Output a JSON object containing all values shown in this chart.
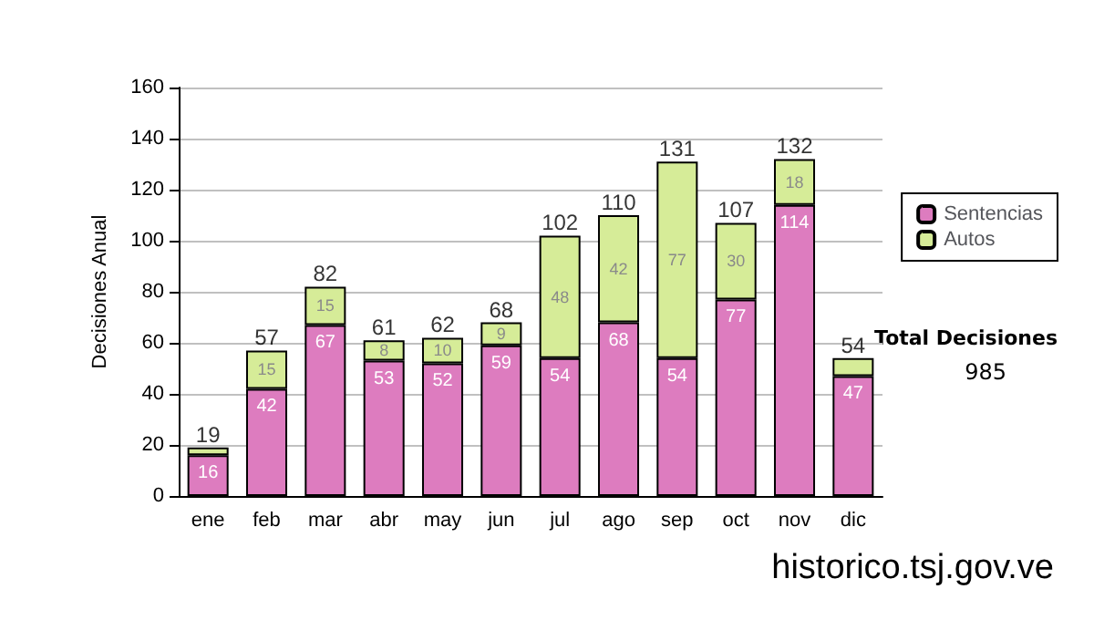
{
  "chart_data": {
    "type": "bar",
    "stacked": true,
    "ylabel": "Decisiones Anual",
    "categories": [
      "ene",
      "feb",
      "mar",
      "abr",
      "may",
      "jun",
      "jul",
      "ago",
      "sep",
      "oct",
      "nov",
      "dic"
    ],
    "series": [
      {
        "name": "Sentencias",
        "color": "#dd7cbf",
        "values": [
          16,
          42,
          67,
          53,
          52,
          59,
          54,
          68,
          54,
          77,
          114,
          47
        ],
        "value_labels": [
          "16",
          "42",
          "67",
          "53",
          "52",
          "59",
          "54",
          "68",
          "54",
          "77",
          "114",
          "47"
        ]
      },
      {
        "name": "Autos",
        "color": "#d6ec98",
        "values": [
          3,
          15,
          15,
          8,
          10,
          9,
          48,
          42,
          77,
          30,
          18,
          7
        ],
        "value_labels": [
          null,
          "15",
          "15",
          "8",
          "10",
          "9",
          "48",
          "42",
          "77",
          "30",
          "18",
          null
        ]
      }
    ],
    "totals": [
      "19",
      "57",
      "82",
      "61",
      "62",
      "68",
      "102",
      "110",
      "131",
      "107",
      "132",
      "54"
    ],
    "ylim": [
      0,
      160
    ],
    "yticks": [
      0,
      20,
      40,
      60,
      80,
      100,
      120,
      140,
      160
    ],
    "grid": "y",
    "legend": "right",
    "annotations": [
      "Total Decisiones",
      "985",
      "historico.tsj.gov.ve"
    ]
  }
}
